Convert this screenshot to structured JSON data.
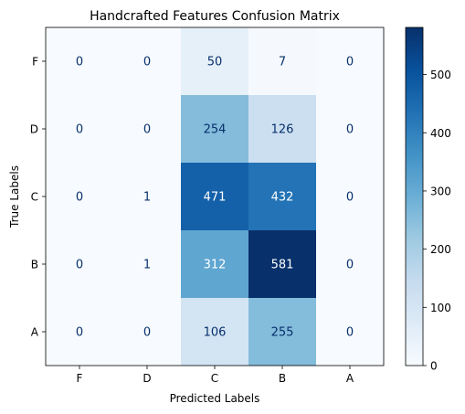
{
  "chart_data": {
    "type": "heatmap",
    "title": "Handcrafted Features Confusion Matrix",
    "xlabel": "Predicted Labels",
    "ylabel": "True Labels",
    "x_categories": [
      "F",
      "D",
      "C",
      "B",
      "A"
    ],
    "y_categories": [
      "F",
      "D",
      "C",
      "B",
      "A"
    ],
    "values": [
      [
        0,
        0,
        50,
        7,
        0
      ],
      [
        0,
        0,
        254,
        126,
        0
      ],
      [
        0,
        1,
        471,
        432,
        0
      ],
      [
        0,
        1,
        312,
        581,
        0
      ],
      [
        0,
        0,
        106,
        255,
        0
      ]
    ],
    "colormap": "Blues",
    "colors": [
      "#f7fbff",
      "#deebf7",
      "#c6dbef",
      "#9ecae1",
      "#6baed6",
      "#4292c6",
      "#2171b5",
      "#08519c",
      "#08306b"
    ],
    "colorbar": {
      "range": [
        0,
        581
      ],
      "ticks": [
        "0",
        "100",
        "200",
        "300",
        "400",
        "500"
      ]
    }
  }
}
